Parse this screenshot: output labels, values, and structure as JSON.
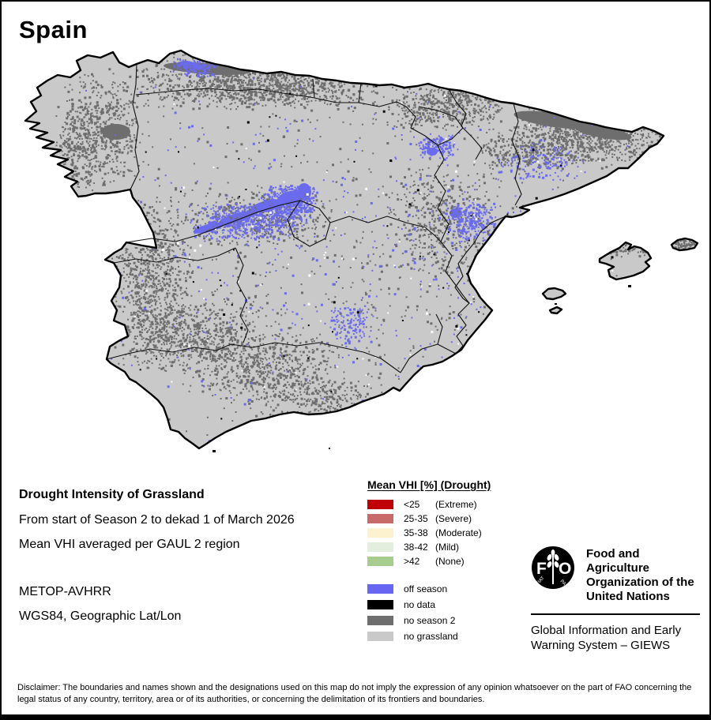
{
  "page": {
    "title": "Spain"
  },
  "info": {
    "heading": "Drought Intensity of Grassland",
    "period_line": "From start of Season 2 to dekad 1 of March 2026",
    "aggregation_line": "Mean VHI averaged per GAUL 2 region",
    "sensor": "METOP-AVHRR",
    "projection": "WGS84, Geographic Lat/Lon"
  },
  "legend": {
    "title": "Mean VHI [%] (Drought)",
    "drought_classes": [
      {
        "range": "<25",
        "qual": "(Extreme)",
        "color": "#c00000"
      },
      {
        "range": "25-35",
        "qual": "(Severe)",
        "color": "#c96a6a"
      },
      {
        "range": "35-38",
        "qual": "(Moderate)",
        "color": "#fdf2d0"
      },
      {
        "range": "38-42",
        "qual": "(Mild)",
        "color": "#e3eedf"
      },
      {
        "range": ">42",
        "qual": "(None)",
        "color": "#a6cc8e"
      }
    ],
    "other_classes": [
      {
        "label": "off season",
        "color": "#6666f2"
      },
      {
        "label": "no data",
        "color": "#000000"
      },
      {
        "label": "no season 2",
        "color": "#6e6e6e"
      },
      {
        "label": "no grassland",
        "color": "#c9c9c9"
      }
    ]
  },
  "fao": {
    "logo_text": "FAO",
    "org_line1": "Food and Agriculture",
    "org_line2": "Organization of the",
    "org_line3": "United Nations",
    "giews_line1": "Global Information and Early",
    "giews_line2": "Warning System – GIEWS"
  },
  "disclaimer": "Disclaimer: The boundaries and names shown and the designations used on this map do not imply the expression of any opinion whatsoever on the part of FAO concerning the legal status of any country, territory, area or of its authorities, or concerning the delimitation of its frontiers and boundaries.",
  "map": {
    "region": "Spain",
    "no_grassland_color": "#c9c9c9",
    "no_season2_color": "#6e6e6e",
    "off_season_color": "#6b6bf0",
    "no_data_color": "#000000",
    "sea_color": "#ffffff"
  }
}
